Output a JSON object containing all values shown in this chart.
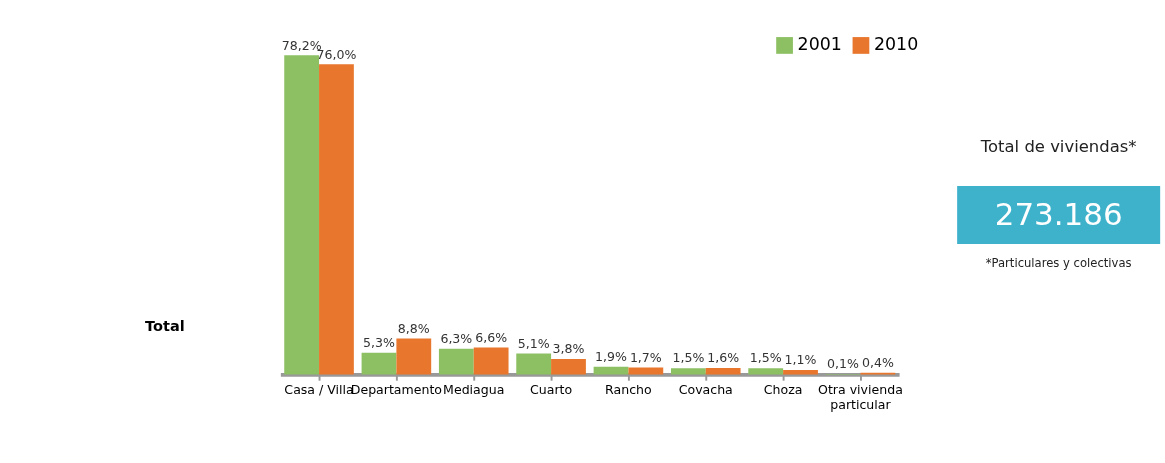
{
  "chart_data": {
    "type": "bar",
    "categories": [
      "Casa / Villa",
      "Departamento",
      "Mediagua",
      "Cuarto",
      "Rancho",
      "Covacha",
      "Choza",
      "Otra vivienda particular"
    ],
    "series": [
      {
        "name": "2001",
        "color": "#8dc063",
        "values": [
          78.2,
          5.3,
          6.3,
          5.1,
          1.9,
          1.5,
          1.5,
          0.1
        ],
        "value_labels": [
          "78,2%",
          "5,3%",
          "6,3%",
          "5,1%",
          "1,9%",
          "1,5%",
          "1,5%",
          "0,1%"
        ]
      },
      {
        "name": "2010",
        "color": "#e8762c",
        "values": [
          76.0,
          8.8,
          6.6,
          3.8,
          1.7,
          1.6,
          1.1,
          0.4
        ],
        "value_labels": [
          "76,0%",
          "8,8%",
          "6,6%",
          "3,8%",
          "1,7%",
          "1,6%",
          "1,1%",
          "0,4%"
        ]
      }
    ],
    "legend": "top right",
    "annotations": [
      "Total",
      "Total de viviendas*",
      "273.186",
      "*Particulares y colectivas"
    ]
  }
}
